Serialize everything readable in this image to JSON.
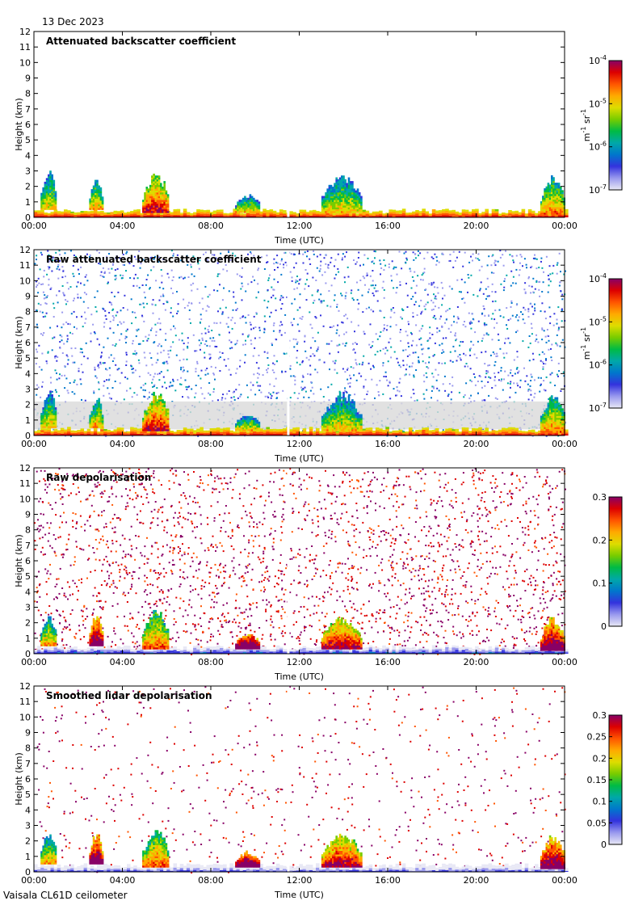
{
  "date": "13 Dec 2023",
  "footer": "Vaisala CL61D ceilometer",
  "palette": [
    "#e8e8f5",
    "#9999ee",
    "#3333dd",
    "#0077cc",
    "#00a8a8",
    "#00bb44",
    "#77cc00",
    "#dddd00",
    "#ffaa00",
    "#ff5500",
    "#dd0000",
    "#880066"
  ],
  "missing_gap_color": "#ffffff",
  "low_signal_color": "#d9d9d9",
  "chart_data": [
    {
      "type": "heatmap",
      "title": "Attenuated backscatter coefficient",
      "xlabel": "Time (UTC)",
      "ylabel": "Height (km)",
      "x_ticks": [
        "00:00",
        "04:00",
        "08:00",
        "12:00",
        "16:00",
        "20:00",
        "00:00"
      ],
      "y_ticks": [
        "0",
        "1",
        "2",
        "3",
        "4",
        "5",
        "6",
        "7",
        "8",
        "9",
        "10",
        "11",
        "12"
      ],
      "xlim": [
        0,
        24
      ],
      "ylim": [
        0,
        12
      ],
      "colorbar": {
        "scale": "log",
        "range": [
          1e-07,
          0.0001
        ],
        "tick_labels": [
          [
            "10",
            "-4"
          ],
          [
            "10",
            "-5"
          ],
          [
            "10",
            "-6"
          ],
          [
            "10",
            "-7"
          ]
        ],
        "unit": "m-1 sr-1"
      },
      "features": [
        {
          "kind": "surface_layer",
          "from": 0,
          "to": 24,
          "top_km": 0.4,
          "level": 0.9
        },
        {
          "kind": "cloud",
          "time_range": [
            0.3,
            1.0
          ],
          "height_range": [
            0.5,
            3.2
          ],
          "level": 0.45
        },
        {
          "kind": "cloud",
          "time_range": [
            2.5,
            3.1
          ],
          "height_range": [
            0.5,
            2.6
          ],
          "level": 0.5
        },
        {
          "kind": "cloud",
          "time_range": [
            4.9,
            6.1
          ],
          "height_range": [
            0.3,
            2.9
          ],
          "level": 0.7
        },
        {
          "kind": "cloud",
          "time_range": [
            9.1,
            10.2
          ],
          "height_range": [
            0.3,
            1.5
          ],
          "level": 0.45
        },
        {
          "kind": "cloud",
          "time_range": [
            13.0,
            14.8
          ],
          "height_range": [
            0.3,
            2.8
          ],
          "level": 0.45
        },
        {
          "kind": "cloud",
          "time_range": [
            22.9,
            24.0
          ],
          "height_range": [
            0.2,
            2.7
          ],
          "level": 0.55
        },
        {
          "kind": "data_gap",
          "time_range": [
            11.45,
            11.55
          ]
        }
      ]
    },
    {
      "type": "heatmap",
      "title": "Raw attenuated backscatter coefficient",
      "xlabel": "Time (UTC)",
      "ylabel": "Height (km)",
      "x_ticks": [
        "00:00",
        "04:00",
        "08:00",
        "12:00",
        "16:00",
        "20:00",
        "00:00"
      ],
      "y_ticks": [
        "0",
        "1",
        "2",
        "3",
        "4",
        "5",
        "6",
        "7",
        "8",
        "9",
        "10",
        "11",
        "12"
      ],
      "xlim": [
        0,
        24
      ],
      "ylim": [
        0,
        12
      ],
      "colorbar": {
        "scale": "log",
        "range": [
          1e-07,
          0.0001
        ],
        "tick_labels": [
          [
            "10",
            "-4"
          ],
          [
            "10",
            "-5"
          ],
          [
            "10",
            "-6"
          ],
          [
            "10",
            "-7"
          ]
        ],
        "unit": "m-1 sr-1"
      },
      "features": [
        {
          "kind": "noise_field",
          "from": 0,
          "to": 24,
          "level": 0.25
        },
        {
          "kind": "surface_layer",
          "from": 0,
          "to": 24,
          "top_km": 0.4,
          "level": 0.9
        },
        {
          "kind": "cloud",
          "time_range": [
            0.3,
            1.0
          ],
          "height_range": [
            0.5,
            3.0
          ],
          "level": 0.45
        },
        {
          "kind": "cloud",
          "time_range": [
            2.5,
            3.1
          ],
          "height_range": [
            0.5,
            2.6
          ],
          "level": 0.5
        },
        {
          "kind": "cloud",
          "time_range": [
            4.9,
            6.1
          ],
          "height_range": [
            0.3,
            2.9
          ],
          "level": 0.7
        },
        {
          "kind": "cloud",
          "time_range": [
            9.1,
            10.2
          ],
          "height_range": [
            0.3,
            1.5
          ],
          "level": 0.45
        },
        {
          "kind": "cloud",
          "time_range": [
            13.0,
            14.8
          ],
          "height_range": [
            0.3,
            2.8
          ],
          "level": 0.45
        },
        {
          "kind": "cloud",
          "time_range": [
            22.9,
            24.0
          ],
          "height_range": [
            0.2,
            2.7
          ],
          "level": 0.55
        },
        {
          "kind": "data_gap",
          "time_range": [
            11.45,
            11.55
          ]
        }
      ]
    },
    {
      "type": "heatmap",
      "title": "Raw depolarisation",
      "xlabel": "Time (UTC)",
      "ylabel": "Height (km)",
      "x_ticks": [
        "00:00",
        "04:00",
        "08:00",
        "12:00",
        "16:00",
        "20:00",
        "00:00"
      ],
      "y_ticks": [
        "0",
        "1",
        "2",
        "3",
        "4",
        "5",
        "6",
        "7",
        "8",
        "9",
        "10",
        "11",
        "12"
      ],
      "xlim": [
        0,
        24
      ],
      "ylim": [
        0,
        12
      ],
      "colorbar": {
        "scale": "linear",
        "range": [
          0,
          0.3
        ],
        "tick_labels": [
          "0.3",
          "0.2",
          "0.1",
          "0"
        ]
      },
      "features": [
        {
          "kind": "noise_field",
          "from": 0,
          "to": 24,
          "level": 0.95
        },
        {
          "kind": "surface_layer",
          "from": 0,
          "to": 24,
          "top_km": 0.4,
          "level": 0.2
        },
        {
          "kind": "cloud",
          "time_range": [
            0.3,
            1.0
          ],
          "height_range": [
            0.5,
            2.5
          ],
          "level": 0.5
        },
        {
          "kind": "cloud",
          "time_range": [
            2.5,
            3.1
          ],
          "height_range": [
            0.5,
            2.6
          ],
          "level": 0.85
        },
        {
          "kind": "cloud",
          "time_range": [
            4.9,
            6.1
          ],
          "height_range": [
            0.3,
            2.9
          ],
          "level": 0.6
        },
        {
          "kind": "cloud",
          "time_range": [
            9.1,
            10.2
          ],
          "height_range": [
            0.3,
            1.3
          ],
          "level": 0.95
        },
        {
          "kind": "cloud",
          "time_range": [
            13.0,
            14.8
          ],
          "height_range": [
            0.3,
            2.4
          ],
          "level": 0.75
        },
        {
          "kind": "cloud",
          "time_range": [
            22.9,
            24.0
          ],
          "height_range": [
            0.2,
            2.4
          ],
          "level": 0.85
        },
        {
          "kind": "data_gap",
          "time_range": [
            11.45,
            11.55
          ]
        }
      ]
    },
    {
      "type": "heatmap",
      "title": "Smoothed lidar depolarisation",
      "xlabel": "Time (UTC)",
      "ylabel": "Height (km)",
      "x_ticks": [
        "00:00",
        "04:00",
        "08:00",
        "12:00",
        "16:00",
        "20:00",
        "00:00"
      ],
      "y_ticks": [
        "0",
        "1",
        "2",
        "3",
        "4",
        "5",
        "6",
        "7",
        "8",
        "9",
        "10",
        "11",
        "12"
      ],
      "xlim": [
        0,
        24
      ],
      "ylim": [
        0,
        12
      ],
      "colorbar": {
        "scale": "linear",
        "range": [
          0,
          0.3
        ],
        "tick_labels": [
          "0.3",
          "0.25",
          "0.2",
          "0.15",
          "0.1",
          "0.05",
          "0"
        ]
      },
      "features": [
        {
          "kind": "sparse_noise",
          "from": 0,
          "to": 24,
          "level": 0.95
        },
        {
          "kind": "surface_layer",
          "from": 0,
          "to": 24,
          "top_km": 0.4,
          "level": 0.15
        },
        {
          "kind": "cloud",
          "time_range": [
            0.3,
            1.0
          ],
          "height_range": [
            0.5,
            2.6
          ],
          "level": 0.5
        },
        {
          "kind": "cloud",
          "time_range": [
            2.5,
            3.1
          ],
          "height_range": [
            0.5,
            2.6
          ],
          "level": 0.85
        },
        {
          "kind": "cloud",
          "time_range": [
            4.9,
            6.1
          ],
          "height_range": [
            0.3,
            2.8
          ],
          "level": 0.6
        },
        {
          "kind": "cloud",
          "time_range": [
            9.1,
            10.2
          ],
          "height_range": [
            0.3,
            1.3
          ],
          "level": 0.95
        },
        {
          "kind": "cloud",
          "time_range": [
            13.0,
            14.8
          ],
          "height_range": [
            0.3,
            2.6
          ],
          "level": 0.75
        },
        {
          "kind": "cloud",
          "time_range": [
            22.9,
            24.0
          ],
          "height_range": [
            0.2,
            2.5
          ],
          "level": 0.85
        },
        {
          "kind": "data_gap",
          "time_range": [
            11.45,
            11.55
          ]
        }
      ]
    }
  ]
}
